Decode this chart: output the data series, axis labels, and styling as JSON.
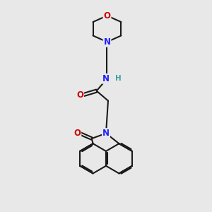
{
  "bg_color": "#e8e8e8",
  "atom_colors": {
    "C": "#1a1a1a",
    "N": "#2020ff",
    "O": "#cc0000",
    "H": "#40a0a0"
  },
  "bond_color": "#1a1a1a",
  "bond_width": 1.5,
  "font_size_atom": 8.5,
  "figsize": [
    3.0,
    3.0
  ],
  "dpi": 100
}
